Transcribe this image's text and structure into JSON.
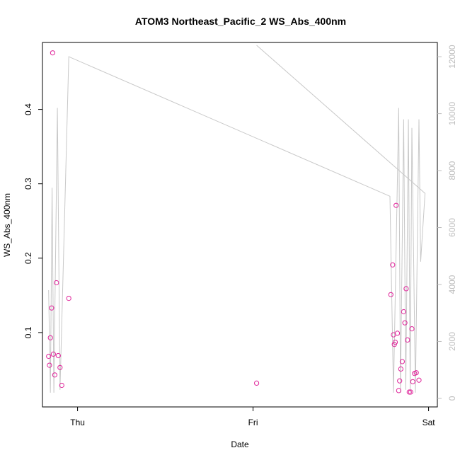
{
  "chart_data": {
    "type": "scatter",
    "title": "ATOM3 Northeast_Pacific_2 WS_Abs_400nm",
    "xlabel": "Date",
    "ylabel": "WS_Abs_400nm",
    "xlim": [
      -0.2,
      2.05
    ],
    "ylim": [
      0.0,
      0.49
    ],
    "x_ticks": [
      {
        "value": 0,
        "label": "Thu"
      },
      {
        "value": 1,
        "label": "Fri"
      },
      {
        "value": 2,
        "label": "Sat"
      }
    ],
    "y_ticks": [
      {
        "value": 0.1,
        "label": "0.1"
      },
      {
        "value": 0.2,
        "label": "0.2"
      },
      {
        "value": 0.3,
        "label": "0.3"
      },
      {
        "value": 0.4,
        "label": "0.4"
      }
    ],
    "y2lim": [
      -300,
      12500
    ],
    "y2_ticks": [
      {
        "value": 0,
        "label": "0"
      },
      {
        "value": 2000,
        "label": "2000"
      },
      {
        "value": 4000,
        "label": "4000"
      },
      {
        "value": 6000,
        "label": "6000"
      },
      {
        "value": 8000,
        "label": "8000"
      },
      {
        "value": 10000,
        "label": "10000"
      },
      {
        "value": 12000,
        "label": "12000"
      }
    ],
    "point_color": "#e0249a",
    "line_color": "#c8c8c8",
    "axis_color_right": "#bdbdbd",
    "points": [
      {
        "x": -0.165,
        "y": 0.068
      },
      {
        "x": -0.16,
        "y": 0.056
      },
      {
        "x": -0.155,
        "y": 0.093
      },
      {
        "x": -0.148,
        "y": 0.133
      },
      {
        "x": -0.142,
        "y": 0.476
      },
      {
        "x": -0.138,
        "y": 0.071
      },
      {
        "x": -0.13,
        "y": 0.043
      },
      {
        "x": -0.12,
        "y": 0.167
      },
      {
        "x": -0.11,
        "y": 0.069
      },
      {
        "x": -0.1,
        "y": 0.053
      },
      {
        "x": -0.09,
        "y": 0.029
      },
      {
        "x": -0.05,
        "y": 0.146
      },
      {
        "x": 1.02,
        "y": 0.032
      },
      {
        "x": 1.785,
        "y": 0.151
      },
      {
        "x": 1.795,
        "y": 0.191
      },
      {
        "x": 1.8,
        "y": 0.097
      },
      {
        "x": 1.805,
        "y": 0.084
      },
      {
        "x": 1.81,
        "y": 0.087
      },
      {
        "x": 1.815,
        "y": 0.271
      },
      {
        "x": 1.822,
        "y": 0.099
      },
      {
        "x": 1.83,
        "y": 0.022
      },
      {
        "x": 1.835,
        "y": 0.035
      },
      {
        "x": 1.842,
        "y": 0.051
      },
      {
        "x": 1.85,
        "y": 0.061
      },
      {
        "x": 1.858,
        "y": 0.128
      },
      {
        "x": 1.865,
        "y": 0.113
      },
      {
        "x": 1.872,
        "y": 0.159
      },
      {
        "x": 1.88,
        "y": 0.09
      },
      {
        "x": 1.89,
        "y": 0.02
      },
      {
        "x": 1.898,
        "y": 0.02
      },
      {
        "x": 1.905,
        "y": 0.105
      },
      {
        "x": 1.91,
        "y": 0.034
      },
      {
        "x": 1.92,
        "y": 0.045
      },
      {
        "x": 1.93,
        "y": 0.046
      },
      {
        "x": 1.945,
        "y": 0.036
      }
    ],
    "line": [
      {
        "x": -0.165,
        "y2": 3800
      },
      {
        "x": -0.155,
        "y2": 200
      },
      {
        "x": -0.145,
        "y2": 7400
      },
      {
        "x": -0.135,
        "y2": 200
      },
      {
        "x": -0.115,
        "y2": 10200
      },
      {
        "x": -0.1,
        "y2": 300
      },
      {
        "x": -0.05,
        "y2": 12000
      },
      {
        "x": 1.78,
        "y2": 7100
      },
      {
        "x": 1.8,
        "y2": 200
      },
      {
        "x": 1.83,
        "y2": 10200
      },
      {
        "x": 1.84,
        "y2": 200
      },
      {
        "x": 1.858,
        "y2": 9800
      },
      {
        "x": 1.87,
        "y2": 300
      },
      {
        "x": 1.885,
        "y2": 9800
      },
      {
        "x": 1.895,
        "y2": 200
      },
      {
        "x": 1.905,
        "y2": 9500
      },
      {
        "x": 1.925,
        "y2": 200
      },
      {
        "x": 1.945,
        "y2": 9800
      },
      {
        "x": 1.955,
        "y2": 4800
      },
      {
        "x": 1.98,
        "y2": 7200
      },
      {
        "x": 1.02,
        "y2": 12400
      }
    ]
  }
}
